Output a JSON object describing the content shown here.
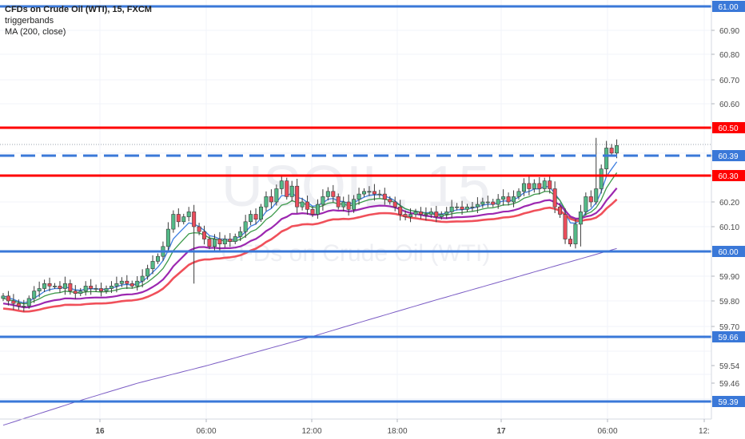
{
  "legend": {
    "title": "CFDs on Crude Oil (WTI), 15, FXCM",
    "indicator_1": "triggerbands",
    "indicator_2": "MA (200, close)"
  },
  "watermark": {
    "symbol": "USOIL, 15",
    "description": "CFDs on Crude Oil (WTI)"
  },
  "colors": {
    "up": "#53b987",
    "down": "#eb4d5c",
    "blue_line": "#3a78d8",
    "red_line": "#ff0000",
    "ma200": "#7b5cc4",
    "band_blue": "#3c7de0",
    "band_green": "#3c9a4a",
    "band_purple": "#9c27b0",
    "band_red": "#f0505a"
  },
  "chart_data": {
    "type": "candlestick",
    "title": "CFDs on Crude Oil (WTI), 15, FXCM",
    "ylim": [
      59.37,
      61.03
    ],
    "y_ticks": [
      "61.00",
      "60.90",
      "60.80",
      "60.70",
      "60.60",
      "60.50",
      "60.39",
      "60.30",
      "60.20",
      "60.10",
      "60.00",
      "59.90",
      "59.80",
      "59.70",
      "59.66",
      "59.54",
      "59.46",
      "59.39"
    ],
    "x_ticks": [
      "16",
      "06:00",
      "12:00",
      "18:00",
      "17",
      "06:00",
      "12:"
    ],
    "price_lines": [
      {
        "label": "61.00",
        "value": 61.0,
        "color": "blue",
        "style": "solid"
      },
      {
        "label": "60.50",
        "value": 60.5,
        "color": "red",
        "style": "solid"
      },
      {
        "label": "60.39",
        "value": 60.39,
        "color": "blue",
        "style": "dashed"
      },
      {
        "label": "60.30",
        "value": 60.3,
        "color": "red",
        "style": "solid"
      },
      {
        "label": "60.00",
        "value": 60.0,
        "color": "blue",
        "style": "solid"
      },
      {
        "label": "59.66",
        "value": 59.66,
        "color": "blue",
        "style": "solid"
      },
      {
        "label": "59.39",
        "value": 59.39,
        "color": "blue",
        "style": "solid"
      }
    ],
    "last_price": 60.43,
    "close": [
      59.82,
      59.8,
      59.79,
      59.78,
      59.78,
      59.81,
      59.84,
      59.85,
      59.87,
      59.86,
      59.86,
      59.85,
      59.87,
      59.84,
      59.83,
      59.84,
      59.86,
      59.85,
      59.85,
      59.84,
      59.85,
      59.86,
      59.87,
      59.88,
      59.87,
      59.86,
      59.88,
      59.9,
      59.93,
      59.96,
      59.98,
      60.02,
      60.09,
      60.15,
      60.12,
      60.14,
      60.16,
      60.1,
      60.08,
      60.05,
      60.02,
      60.05,
      60.03,
      60.05,
      60.04,
      60.06,
      60.08,
      60.12,
      60.15,
      60.13,
      60.18,
      60.22,
      60.2,
      60.25,
      60.28,
      60.22,
      60.26,
      60.18,
      60.2,
      60.17,
      60.15,
      60.19,
      60.22,
      60.24,
      60.22,
      60.18,
      60.2,
      60.17,
      60.21,
      60.23,
      60.24,
      60.24,
      60.23,
      60.23,
      60.21,
      60.2,
      60.18,
      60.15,
      60.14,
      60.15,
      60.16,
      60.15,
      60.15,
      60.16,
      60.14,
      60.15,
      60.16,
      60.18,
      60.18,
      60.17,
      60.18,
      60.18,
      60.19,
      60.2,
      60.2,
      60.19,
      60.21,
      60.22,
      60.2,
      60.22,
      60.24,
      60.27,
      60.25,
      60.27,
      60.25,
      60.28,
      60.25,
      60.18,
      60.15,
      60.05,
      60.03,
      60.11,
      60.16,
      60.22,
      60.2,
      60.25,
      60.33,
      60.42,
      60.4,
      60.43
    ]
  }
}
